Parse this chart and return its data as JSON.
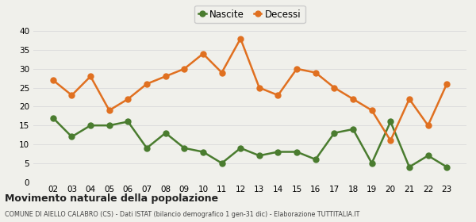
{
  "years": [
    "02",
    "03",
    "04",
    "05",
    "06",
    "07",
    "08",
    "09",
    "10",
    "11",
    "12",
    "13",
    "14",
    "15",
    "16",
    "17",
    "18",
    "19",
    "20",
    "21",
    "22",
    "23"
  ],
  "nascite": [
    17,
    12,
    15,
    15,
    16,
    9,
    13,
    9,
    8,
    5,
    9,
    7,
    8,
    8,
    6,
    13,
    14,
    5,
    16,
    4,
    7,
    4
  ],
  "decessi": [
    27,
    23,
    28,
    19,
    22,
    26,
    28,
    30,
    34,
    29,
    38,
    25,
    23,
    30,
    29,
    25,
    22,
    19,
    11,
    22,
    15,
    26
  ],
  "nascite_color": "#4a7c2f",
  "decessi_color": "#e07020",
  "title": "Movimento naturale della popolazione",
  "subtitle": "COMUNE DI AIELLO CALABRO (CS) - Dati ISTAT (bilancio demografico 1 gen-31 dic) - Elaborazione TUTTITALIA.IT",
  "legend_nascite": "Nascite",
  "legend_decessi": "Decessi",
  "ylim": [
    0,
    40
  ],
  "yticks": [
    0,
    5,
    10,
    15,
    20,
    25,
    30,
    35,
    40
  ],
  "bg_color": "#f0f0eb",
  "grid_color": "#dddddd",
  "line_width": 1.8,
  "marker_size": 5
}
